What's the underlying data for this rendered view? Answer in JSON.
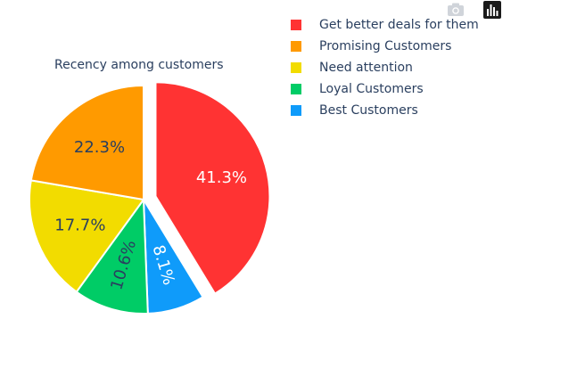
{
  "chart_data": {
    "type": "pie",
    "title": "Recency among customers",
    "slices": [
      {
        "label": "Get better deals for them",
        "value": 41.3,
        "color": "#ff3333",
        "text_color": "#ffffff",
        "pulled": true
      },
      {
        "label": "Best Customers",
        "value": 8.1,
        "color": "#0f9bfa",
        "text_color": "#ffffff"
      },
      {
        "label": "Loyal Customers",
        "value": 10.6,
        "color": "#00cc66",
        "text_color": "#2a3f5f"
      },
      {
        "label": "Need attention",
        "value": 17.7,
        "color": "#f2dc00",
        "text_color": "#2a3f5f"
      },
      {
        "label": "Promising Customers",
        "value": 22.3,
        "color": "#ff9a00",
        "text_color": "#2a3f5f"
      }
    ],
    "legend_order": [
      "Get better deals for them",
      "Promising Customers",
      "Need attention",
      "Loyal Customers",
      "Best Customers"
    ],
    "legend_position": "top-right"
  },
  "modebar": {
    "icons": [
      "camera-icon",
      "bar-chart-logo-icon"
    ]
  }
}
